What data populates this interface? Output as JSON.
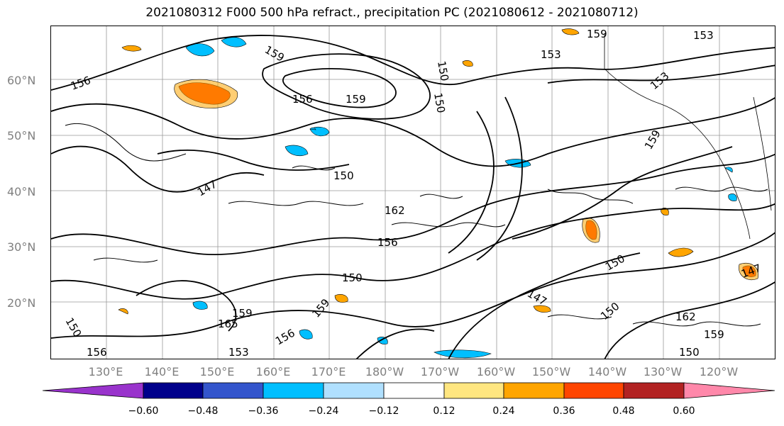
{
  "title": "2021080312 F000 500 hPa refract., precipitation PC (2021080612 - 2021080712)",
  "lat_labels": [
    "60°N",
    "50°N",
    "40°N",
    "30°N",
    "20°N"
  ],
  "lon_labels": [
    "130°E",
    "140°E",
    "150°E",
    "160°E",
    "170°E",
    "180°W",
    "170°W",
    "160°W",
    "150°W",
    "140°W",
    "130°W",
    "120°W"
  ],
  "contour_labels": [
    "159",
    "156",
    "153",
    "150",
    "147",
    "162",
    "165"
  ],
  "colorbar": {
    "ticks": [
      "−0.60",
      "−0.48",
      "−0.36",
      "−0.24",
      "−0.12",
      "0.12",
      "0.24",
      "0.36",
      "0.48",
      "0.60"
    ],
    "colors": [
      "#9933cc",
      "#00008b",
      "#3355cc",
      "#00bfff",
      "#b0e0ff",
      "#ffffff",
      "#ffe680",
      "#ffa500",
      "#ff4500",
      "#b22222",
      "#ff88aa"
    ]
  },
  "shading_colors": {
    "neg_light": "#00bfff",
    "neg_pale": "#b0e0ff",
    "pos_yellow": "#ffe680",
    "pos_orange": "#ffa500",
    "pos_red": "#ff4500"
  }
}
